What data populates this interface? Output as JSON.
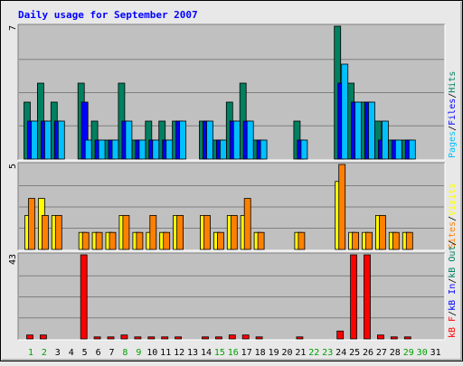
{
  "chart_data": {
    "type": "bar",
    "title": "Daily usage for September 2007",
    "days": [
      "1",
      "2",
      "3",
      "4",
      "5",
      "6",
      "7",
      "8",
      "9",
      "10",
      "11",
      "12",
      "13",
      "14",
      "15",
      "16",
      "17",
      "18",
      "19",
      "20",
      "21",
      "22",
      "23",
      "24",
      "25",
      "26",
      "27",
      "28",
      "29",
      "30",
      "31"
    ],
    "weekend_days": [
      "1",
      "2",
      "8",
      "9",
      "15",
      "16",
      "22",
      "23",
      "29",
      "30"
    ],
    "panels": [
      {
        "id": "hits-files-pages",
        "ylim_label": "7",
        "ymax": 7,
        "labels": [
          {
            "text": "Pages",
            "color": "#00c0ff"
          },
          {
            "text": "/",
            "color": "#000000"
          },
          {
            "text": "Files",
            "color": "#0000ff"
          },
          {
            "text": "/",
            "color": "#000000"
          },
          {
            "text": "Hits",
            "color": "#008060"
          }
        ],
        "series": [
          {
            "name": "Hits",
            "color": "#008060",
            "values": [
              3,
              4,
              3,
              0,
              4,
              2,
              1,
              4,
              1,
              2,
              2,
              2,
              0,
              2,
              1,
              3,
              4,
              1,
              0,
              0,
              2,
              0,
              0,
              7,
              4,
              3,
              2,
              1,
              1,
              0,
              0
            ]
          },
          {
            "name": "Files",
            "color": "#0000ff",
            "values": [
              2,
              2,
              2,
              0,
              3,
              1,
              1,
              2,
              1,
              1,
              1,
              2,
              0,
              2,
              1,
              2,
              2,
              1,
              0,
              0,
              1,
              0,
              0,
              4,
              3,
              3,
              1,
              1,
              1,
              0,
              0
            ]
          },
          {
            "name": "Pages",
            "color": "#00c0ff",
            "values": [
              2,
              2,
              2,
              0,
              1,
              1,
              1,
              2,
              1,
              1,
              1,
              2,
              0,
              2,
              1,
              2,
              2,
              1,
              0,
              0,
              1,
              0,
              0,
              5,
              3,
              3,
              2,
              1,
              1,
              0,
              0
            ]
          }
        ]
      },
      {
        "id": "visits-sites",
        "ylim_label": "5",
        "ymax": 5,
        "labels": [
          {
            "text": "Sites",
            "color": "#ff8000"
          },
          {
            "text": "/",
            "color": "#000000"
          },
          {
            "text": "Visits",
            "color": "#ffff00"
          }
        ],
        "series": [
          {
            "name": "Visits",
            "color": "#ffff00",
            "values": [
              2,
              3,
              2,
              0,
              1,
              1,
              1,
              2,
              1,
              1,
              1,
              2,
              0,
              2,
              1,
              2,
              2,
              1,
              0,
              0,
              1,
              0,
              0,
              4,
              1,
              1,
              2,
              1,
              1,
              0,
              0
            ]
          },
          {
            "name": "Sites",
            "color": "#ff8000",
            "values": [
              3,
              2,
              2,
              0,
              1,
              1,
              1,
              2,
              1,
              2,
              1,
              2,
              0,
              2,
              1,
              2,
              3,
              1,
              0,
              0,
              1,
              0,
              0,
              5,
              1,
              1,
              2,
              1,
              1,
              0,
              0
            ]
          }
        ]
      },
      {
        "id": "kbytes",
        "ylim_label": "43",
        "ymax": 43,
        "labels": [
          {
            "text": "kB F",
            "color": "#ff0000"
          },
          {
            "text": "/",
            "color": "#000000"
          },
          {
            "text": "kB In",
            "color": "#0000ff"
          },
          {
            "text": "/",
            "color": "#000000"
          },
          {
            "text": "kB Out",
            "color": "#008060"
          },
          {
            "text": "/",
            "color": "#000000"
          }
        ],
        "series": [
          {
            "name": "kB F",
            "color": "#ff0000",
            "values": [
              2,
              2,
              0,
              0,
              43,
              1,
              1,
              2,
              1,
              1,
              1,
              1,
              0,
              1,
              1,
              2,
              2,
              1,
              0,
              0,
              1,
              0,
              0,
              4,
              43,
              43,
              2,
              1,
              1,
              0,
              0
            ]
          }
        ]
      }
    ],
    "colors": {
      "background": "#e8e8e8",
      "plot": "#c0c0c0",
      "title": "#0000ff",
      "weekday_tick": "#000000",
      "weekend_tick": "#00a000"
    }
  }
}
